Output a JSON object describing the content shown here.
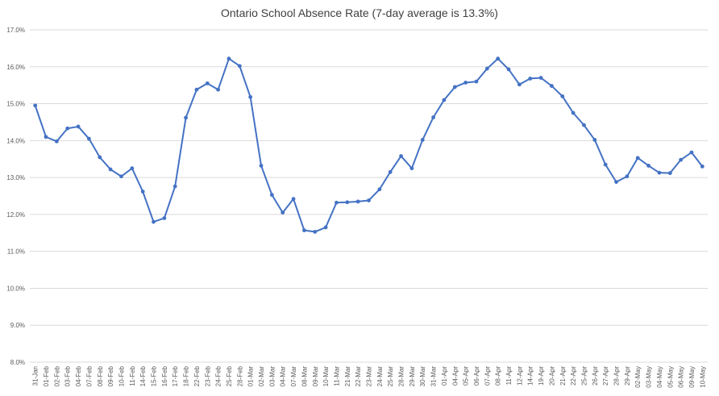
{
  "chart_data": {
    "type": "line",
    "title": "Ontario School Absence Rate (7-day average is 13.3%)",
    "xlabel": "",
    "ylabel": "",
    "ylim": [
      8.0,
      17.0
    ],
    "yticks": [
      "8.0%",
      "9.0%",
      "10.0%",
      "11.0%",
      "12.0%",
      "13.0%",
      "14.0%",
      "15.0%",
      "16.0%",
      "17.0%"
    ],
    "grid": true,
    "legend": "none",
    "color": "#4472c4",
    "categories": [
      "31-Jan",
      "01-Feb",
      "02-Feb",
      "03-Feb",
      "04-Feb",
      "07-Feb",
      "08-Feb",
      "09-Feb",
      "10-Feb",
      "11-Feb",
      "14-Feb",
      "15-Feb",
      "16-Feb",
      "17-Feb",
      "18-Feb",
      "22-Feb",
      "23-Feb",
      "24-Feb",
      "25-Feb",
      "28-Feb",
      "01-Mar",
      "02-Mar",
      "03-Mar",
      "04-Mar",
      "07-Mar",
      "08-Mar",
      "09-Mar",
      "10-Mar",
      "11-Mar",
      "21-Mar",
      "22-Mar",
      "23-Mar",
      "24-Mar",
      "25-Mar",
      "28-Mar",
      "29-Mar",
      "30-Mar",
      "31-Mar",
      "01-Apr",
      "04-Apr",
      "05-Apr",
      "06-Apr",
      "07-Apr",
      "08-Apr",
      "11-Apr",
      "12-Apr",
      "14-Apr",
      "19-Apr",
      "20-Apr",
      "21-Apr",
      "22-Apr",
      "25-Apr",
      "26-Apr",
      "27-Apr",
      "28-Apr",
      "29-Apr",
      "02-May",
      "03-May",
      "04-May",
      "05-May",
      "06-May",
      "09-May",
      "10-May"
    ],
    "series": [
      {
        "values": [
          14.95,
          14.1,
          13.98,
          14.33,
          14.38,
          14.05,
          13.55,
          13.22,
          13.03,
          13.25,
          12.62,
          11.8,
          11.9,
          12.76,
          14.62,
          15.38,
          15.55,
          15.38,
          16.22,
          16.02,
          15.18,
          13.32,
          12.53,
          12.05,
          12.42,
          11.57,
          11.53,
          11.65,
          12.32,
          12.33,
          12.35,
          12.38,
          12.68,
          13.15,
          13.58,
          13.25,
          14.02,
          14.63,
          15.1,
          15.45,
          15.57,
          15.6,
          15.95,
          16.22,
          15.93,
          15.52,
          15.68,
          15.7,
          15.48,
          15.2,
          14.75,
          14.42,
          14.02,
          13.35,
          12.88,
          13.03,
          13.53,
          13.32,
          13.13,
          13.12,
          13.48,
          13.68,
          13.3
        ]
      }
    ]
  }
}
